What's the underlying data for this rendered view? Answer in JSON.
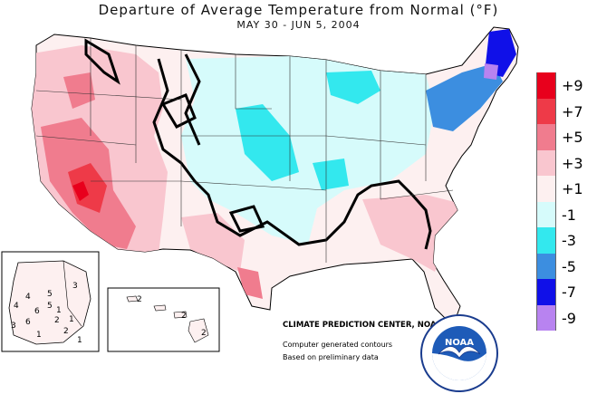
{
  "title": "Departure of Average Temperature from Normal (°F)",
  "subtitle": "MAY 30  -  JUN  5, 2004",
  "legend": [
    {
      "label": "+9",
      "color": "#e8001c"
    },
    {
      "label": "+7",
      "color": "#ee3a48"
    },
    {
      "label": "+5",
      "color": "#f07c8e"
    },
    {
      "label": "+3",
      "color": "#f9c6cf"
    },
    {
      "label": "+1",
      "color": "#fdf0f0"
    },
    {
      "label": "-1",
      "color": "#d6fbfb"
    },
    {
      "label": "-3",
      "color": "#33e8ee"
    },
    {
      "label": "-5",
      "color": "#3c8ee0"
    },
    {
      "label": "-7",
      "color": "#1010e8"
    },
    {
      "label": "-9",
      "color": "#b883f0"
    }
  ],
  "credits": {
    "center": "CLIMATE PREDICTION CENTER, NOAA",
    "line2": "Computer generated contours",
    "line3": "Based on preliminary data"
  },
  "logo": {
    "text": "NOAA",
    "icon": "noaa-seagull-icon"
  },
  "alaska_labels": [
    "3",
    "4",
    "5",
    "6",
    "1",
    "2",
    "6",
    "4",
    "5",
    "3",
    "1",
    "2",
    "1",
    "1"
  ],
  "hawaii_labels": [
    "2",
    "2",
    "2"
  ]
}
